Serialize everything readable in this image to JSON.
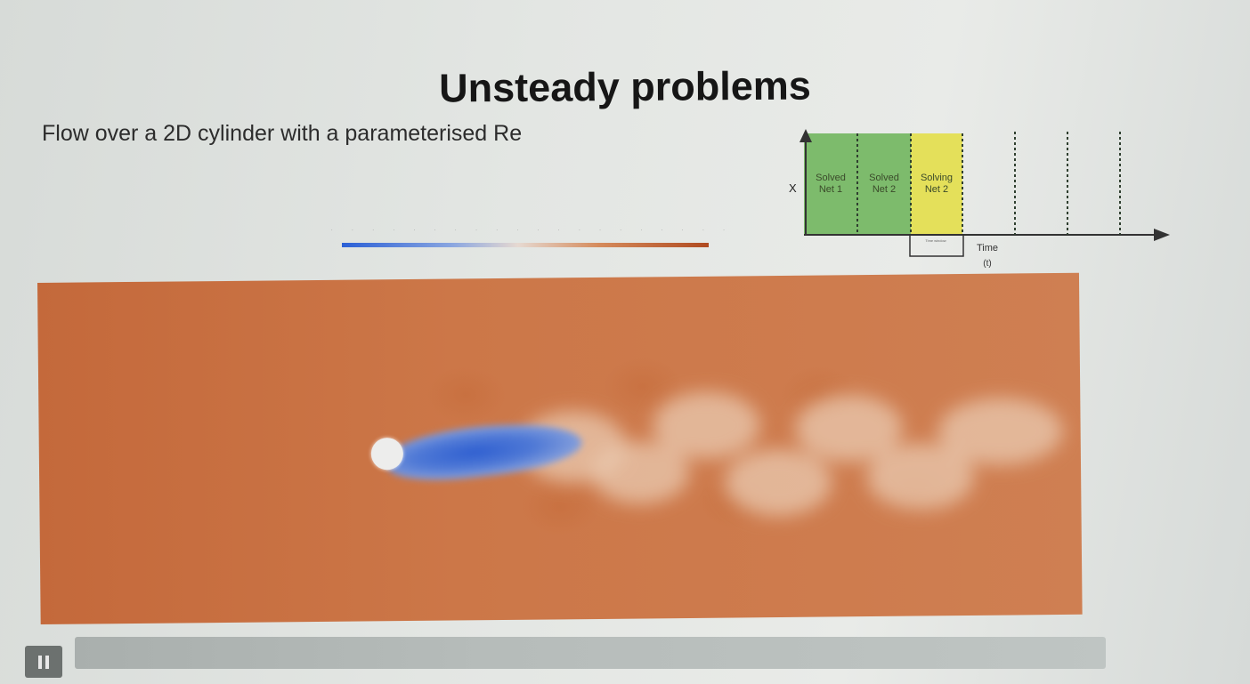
{
  "slide": {
    "title": "Unsteady problems",
    "subtitle": "Flow over a 2D cylinder with a parameterised Re"
  },
  "colorbar": {
    "colors": [
      "#2a5fd6",
      "#e6d9d1",
      "#b04a20"
    ]
  },
  "timeline": {
    "x_axis_label": "X",
    "time_label": "Time",
    "time_unit": "(t)",
    "window_label": "Time window",
    "blocks": [
      {
        "line1": "Solved",
        "line2": "Net 1",
        "color": "#7dbb6c"
      },
      {
        "line1": "Solved",
        "line2": "Net 2",
        "color": "#7dbb6c"
      },
      {
        "line1": "Solving",
        "line2": "Net 2",
        "color": "#e4e05a"
      }
    ]
  },
  "simulation": {
    "background_color": "#c4693b",
    "wake_color": "#2f5fd0",
    "cylinder_color": "#ededec"
  },
  "player": {
    "pause_icon": "pause-icon"
  }
}
